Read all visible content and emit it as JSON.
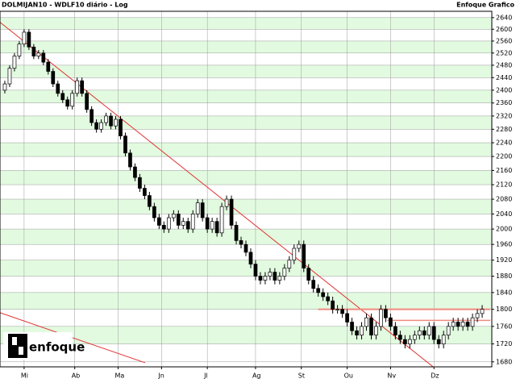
{
  "chart_data": {
    "type": "candlestick",
    "title": "DOLMIJAN10 - WDLF10 diário - Log",
    "source": "Enfoque Grafico",
    "logo_text": "enfoque",
    "log_scale": true,
    "grid": true,
    "band_colors": [
      "#e2fbe0",
      "#ffffff"
    ],
    "up_color": "#ffffff",
    "down_color": "#000000",
    "xlim": [
      -1,
      101
    ],
    "xticks": [
      {
        "value": 4,
        "label": "Mi"
      },
      {
        "value": 14.5,
        "label": "Ab"
      },
      {
        "value": 23.5,
        "label": "Ma"
      },
      {
        "value": 32.5,
        "label": "Jn"
      },
      {
        "value": 42,
        "label": "Jl"
      },
      {
        "value": 52,
        "label": "Ag"
      },
      {
        "value": 61.5,
        "label": "St"
      },
      {
        "value": 71,
        "label": "Ou"
      },
      {
        "value": 80,
        "label": "Nv"
      },
      {
        "value": 89,
        "label": "Dz"
      }
    ],
    "ylim": [
      1669,
      2662
    ],
    "yticks": [
      1680,
      1720,
      1760,
      1800,
      1840,
      1880,
      1920,
      1960,
      2000,
      2040,
      2080,
      2120,
      2160,
      2200,
      2240,
      2280,
      2320,
      2360,
      2400,
      2440,
      2480,
      2520,
      2560,
      2600,
      2640
    ],
    "open": [
      2400,
      2420,
      2470,
      2510,
      2550,
      2590,
      2540,
      2510,
      2520,
      2490,
      2460,
      2420,
      2390,
      2370,
      2350,
      2390,
      2430,
      2390,
      2340,
      2300,
      2280,
      2300,
      2320,
      2290,
      2310,
      2260,
      2210,
      2170,
      2140,
      2110,
      2090,
      2060,
      2030,
      2010,
      2000,
      2030,
      2040,
      2010,
      2020,
      2000,
      2040,
      2070,
      2030,
      2000,
      2020,
      1990,
      2060,
      2080,
      2010,
      1970,
      1960,
      1940,
      1910,
      1880,
      1870,
      1880,
      1890,
      1870,
      1880,
      1900,
      1920,
      1950,
      1960,
      1900,
      1870,
      1850,
      1840,
      1830,
      1820,
      1800,
      1800,
      1790,
      1770,
      1750,
      1740,
      1760,
      1780,
      1740,
      1760,
      1800,
      1780,
      1760,
      1740,
      1730,
      1720,
      1730,
      1740,
      1750,
      1740,
      1760,
      1730,
      1720,
      1740,
      1760,
      1770,
      1760,
      1770,
      1760,
      1780,
      1790
    ],
    "high": [
      2430,
      2480,
      2520,
      2560,
      2600,
      2600,
      2550,
      2530,
      2530,
      2500,
      2470,
      2430,
      2400,
      2380,
      2400,
      2440,
      2440,
      2400,
      2350,
      2310,
      2310,
      2330,
      2330,
      2320,
      2320,
      2270,
      2220,
      2180,
      2150,
      2120,
      2100,
      2070,
      2040,
      2020,
      2040,
      2050,
      2050,
      2030,
      2030,
      2050,
      2080,
      2080,
      2040,
      2030,
      2030,
      2070,
      2090,
      2090,
      2020,
      1980,
      1970,
      1950,
      1920,
      1890,
      1890,
      1900,
      1900,
      1890,
      1910,
      1930,
      1960,
      1970,
      1970,
      1910,
      1880,
      1860,
      1850,
      1840,
      1830,
      1810,
      1810,
      1800,
      1780,
      1760,
      1770,
      1790,
      1790,
      1770,
      1810,
      1810,
      1790,
      1770,
      1750,
      1740,
      1740,
      1750,
      1760,
      1760,
      1770,
      1770,
      1740,
      1750,
      1770,
      1780,
      1780,
      1780,
      1780,
      1790,
      1800,
      1810
    ],
    "low": [
      2390,
      2410,
      2460,
      2500,
      2540,
      2530,
      2500,
      2500,
      2480,
      2450,
      2410,
      2380,
      2360,
      2340,
      2340,
      2380,
      2380,
      2330,
      2290,
      2270,
      2270,
      2290,
      2280,
      2280,
      2250,
      2200,
      2160,
      2130,
      2100,
      2080,
      2050,
      2020,
      2000,
      1990,
      1990,
      2020,
      2000,
      2000,
      1990,
      1990,
      2030,
      2020,
      1990,
      1990,
      1980,
      1980,
      2050,
      2000,
      1960,
      1950,
      1930,
      1900,
      1870,
      1860,
      1860,
      1870,
      1860,
      1860,
      1870,
      1890,
      1910,
      1940,
      1890,
      1860,
      1840,
      1830,
      1820,
      1810,
      1790,
      1790,
      1780,
      1760,
      1740,
      1730,
      1730,
      1750,
      1730,
      1730,
      1750,
      1770,
      1750,
      1730,
      1720,
      1710,
      1710,
      1720,
      1730,
      1730,
      1730,
      1720,
      1710,
      1710,
      1730,
      1750,
      1750,
      1750,
      1750,
      1750,
      1770,
      1780
    ],
    "close": [
      2420,
      2470,
      2510,
      2550,
      2590,
      2540,
      2510,
      2520,
      2490,
      2460,
      2420,
      2390,
      2370,
      2350,
      2390,
      2430,
      2390,
      2340,
      2300,
      2280,
      2300,
      2320,
      2290,
      2310,
      2260,
      2210,
      2170,
      2140,
      2110,
      2090,
      2060,
      2030,
      2010,
      2000,
      2030,
      2040,
      2010,
      2020,
      2000,
      2040,
      2070,
      2030,
      2000,
      2020,
      1990,
      2060,
      2080,
      2010,
      1970,
      1960,
      1940,
      1910,
      1880,
      1870,
      1880,
      1890,
      1870,
      1880,
      1900,
      1920,
      1950,
      1960,
      1900,
      1870,
      1850,
      1840,
      1830,
      1820,
      1800,
      1800,
      1790,
      1770,
      1750,
      1740,
      1760,
      1780,
      1740,
      1760,
      1800,
      1780,
      1760,
      1740,
      1730,
      1720,
      1730,
      1740,
      1750,
      1740,
      1760,
      1730,
      1720,
      1740,
      1760,
      1770,
      1760,
      1770,
      1760,
      1780,
      1790,
      1800
    ],
    "lines": [
      {
        "x": [
          -1,
          90.5
        ],
        "y": [
          2624,
          1655
        ],
        "color": "#e03030",
        "width": 1
      },
      {
        "x": [
          -1,
          29.1
        ],
        "y": [
          1792,
          1678
        ],
        "color": "#e03030",
        "width": 1
      },
      {
        "x": [
          65,
          100.7
        ],
        "y": [
          1800,
          1800
        ],
        "color": "#f08a80",
        "width": 2
      },
      {
        "x": [
          79.3,
          100.7
        ],
        "y": [
          1774,
          1774
        ],
        "color": "#f08a80",
        "width": 1.5
      }
    ]
  }
}
